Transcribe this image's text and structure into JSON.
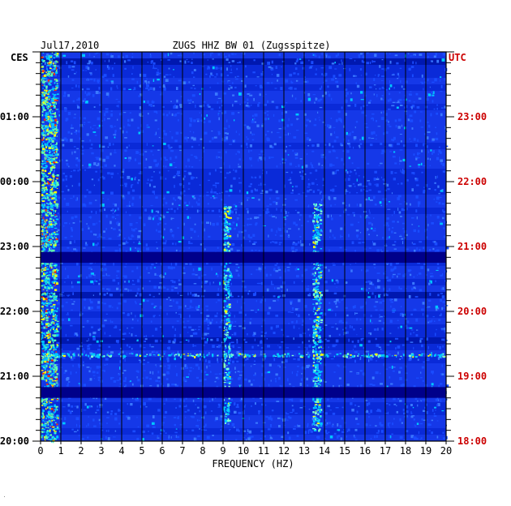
{
  "chart_data": {
    "type": "heatmap",
    "date": "Jul17,2010",
    "title": "ZUGS HHZ BW 01 (Zugsspitze)",
    "xlabel": "FREQUENCY (HZ)",
    "x_ticks": [
      "0",
      "1",
      "2",
      "3",
      "4",
      "5",
      "6",
      "7",
      "8",
      "9",
      "10",
      "11",
      "12",
      "13",
      "14",
      "15",
      "16",
      "17",
      "18",
      "19",
      "20"
    ],
    "xlim": [
      0,
      20
    ],
    "left_axis_label": "CES",
    "left_ticks": [
      "01:00",
      "00:00",
      "23:00",
      "22:00",
      "21:00",
      "20:00"
    ],
    "right_axis_label": "UTC",
    "right_ticks": [
      "23:00",
      "22:00",
      "21:00",
      "20:00",
      "19:00",
      "18:00"
    ],
    "time_range_utc": [
      "18:00",
      "00:00"
    ],
    "grid": true,
    "colors": {
      "background_field": "#0a2ad8",
      "dark_band": "#00008a",
      "low": "#1a4cff",
      "mid": "#00c8ff",
      "high": "#ffff00",
      "peak": "#ff3000",
      "grid": "#000000",
      "utc_text": "#cc0000"
    },
    "energy_features": [
      {
        "freq_hz": [
          0,
          0.8
        ],
        "time_utc": [
          "18:00",
          "00:00"
        ],
        "level": "high"
      },
      {
        "freq_hz": [
          9,
          9.3
        ],
        "time_utc": [
          "18:15",
          "21:40"
        ],
        "level": "mid"
      },
      {
        "freq_hz": [
          13.4,
          13.8
        ],
        "time_utc": [
          "18:10",
          "21:40"
        ],
        "level": "mid"
      },
      {
        "freq_hz": [
          0,
          20
        ],
        "time_utc": [
          "19:20",
          "19:20"
        ],
        "level": "mid"
      },
      {
        "freq_hz": [
          0,
          20
        ],
        "time_utc": [
          "18:40",
          "18:50"
        ],
        "level": "dark"
      },
      {
        "freq_hz": [
          0,
          20
        ],
        "time_utc": [
          "20:45",
          "20:55"
        ],
        "level": "dark"
      }
    ]
  }
}
